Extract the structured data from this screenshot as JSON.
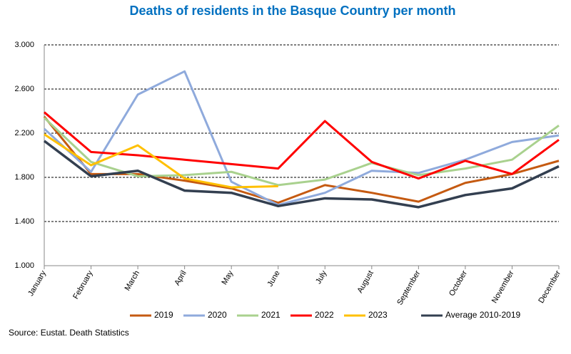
{
  "chart_data": {
    "type": "line",
    "title": "Deaths of residents in the Basque Country per month",
    "source": "Source: Eustat. Death Statistics",
    "categories": [
      "January",
      "February",
      "March",
      "April",
      "May",
      "June",
      "July",
      "August",
      "September",
      "October",
      "November",
      "December"
    ],
    "series": [
      {
        "name": "2019",
        "color": "#c55a11",
        "values": [
          2350,
          1830,
          1830,
          1770,
          1700,
          1570,
          1730,
          1660,
          1580,
          1750,
          1830,
          1950
        ]
      },
      {
        "name": "2020",
        "color": "#8faadc",
        "values": [
          2240,
          1850,
          2550,
          2760,
          1760,
          1550,
          1660,
          1860,
          1840,
          1960,
          2120,
          2180
        ]
      },
      {
        "name": "2021",
        "color": "#a9d18e",
        "values": [
          2340,
          1940,
          1810,
          1820,
          1850,
          1730,
          1780,
          1930,
          1820,
          1880,
          1960,
          2270
        ]
      },
      {
        "name": "2022",
        "color": "#ff0000",
        "values": [
          2390,
          2030,
          2000,
          1960,
          1920,
          1880,
          2310,
          1940,
          1790,
          1950,
          1830,
          2140
        ]
      },
      {
        "name": "2023",
        "color": "#ffc000",
        "values": [
          2190,
          1910,
          2090,
          1790,
          1710,
          1720,
          null,
          null,
          null,
          null,
          null,
          null
        ]
      },
      {
        "name": "Average 2010-2019",
        "color": "#333f50",
        "values": [
          2130,
          1810,
          1860,
          1680,
          1660,
          1540,
          1610,
          1600,
          1530,
          1640,
          1700,
          1900
        ]
      }
    ],
    "ylim": [
      1000,
      3000
    ],
    "yticks": [
      {
        "value": 1000,
        "label": "1.000"
      },
      {
        "value": 1400,
        "label": "1.400"
      },
      {
        "value": 1800,
        "label": "1.800"
      },
      {
        "value": 2200,
        "label": "2.200"
      },
      {
        "value": 2600,
        "label": "2.600"
      },
      {
        "value": 3000,
        "label": "3.000"
      }
    ],
    "grid": true
  }
}
